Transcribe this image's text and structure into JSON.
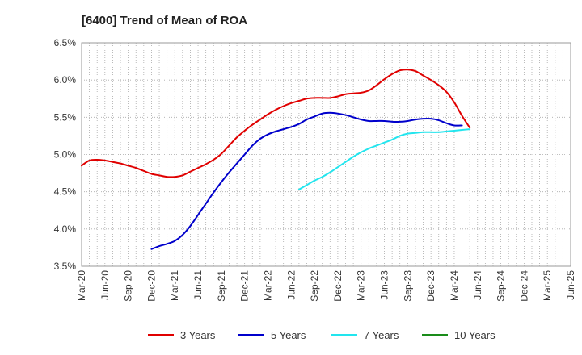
{
  "chart_data": {
    "type": "line",
    "title": "[6400]  Trend of Mean of ROA",
    "xlabel": "",
    "ylabel": "",
    "y_tick_labels": [
      "3.5%",
      "4.0%",
      "4.5%",
      "5.0%",
      "5.5%",
      "6.0%",
      "6.5%"
    ],
    "y_ticks": [
      3.5,
      4.0,
      4.5,
      5.0,
      5.5,
      6.0,
      6.5
    ],
    "ylim": [
      3.5,
      6.5
    ],
    "x_tick_labels": [
      "Mar-20",
      "Jun-20",
      "Sep-20",
      "Dec-20",
      "Mar-21",
      "Jun-21",
      "Sep-21",
      "Dec-21",
      "Mar-22",
      "Jun-22",
      "Sep-22",
      "Dec-22",
      "Mar-23",
      "Jun-23",
      "Sep-23",
      "Dec-23",
      "Mar-24",
      "Jun-24",
      "Sep-24",
      "Dec-24",
      "Mar-25",
      "Jun-25"
    ],
    "grid": true,
    "legend_position": "bottom",
    "series": [
      {
        "name": "3 Years",
        "color": "#e00000",
        "start_index": 0,
        "values": [
          4.85,
          4.92,
          4.93,
          4.92,
          4.9,
          4.88,
          4.85,
          4.82,
          4.78,
          4.74,
          4.72,
          4.7,
          4.7,
          4.72,
          4.77,
          4.82,
          4.87,
          4.93,
          5.01,
          5.12,
          5.23,
          5.32,
          5.4,
          5.47,
          5.54,
          5.6,
          5.65,
          5.69,
          5.72,
          5.75,
          5.76,
          5.76,
          5.76,
          5.78,
          5.81,
          5.82,
          5.83,
          5.86,
          5.93,
          6.01,
          6.08,
          6.13,
          6.14,
          6.12,
          6.06,
          6.0,
          5.93,
          5.84,
          5.7,
          5.52,
          5.36
        ]
      },
      {
        "name": "5 Years",
        "color": "#0000cc",
        "start_index": 9,
        "values": [
          3.73,
          3.77,
          3.8,
          3.84,
          3.92,
          4.04,
          4.19,
          4.34,
          4.49,
          4.63,
          4.76,
          4.88,
          5.0,
          5.12,
          5.21,
          5.27,
          5.31,
          5.34,
          5.37,
          5.41,
          5.47,
          5.51,
          5.55,
          5.56,
          5.55,
          5.53,
          5.5,
          5.47,
          5.45,
          5.45,
          5.45,
          5.44,
          5.44,
          5.45,
          5.47,
          5.48,
          5.48,
          5.46,
          5.42,
          5.39,
          5.39
        ]
      },
      {
        "name": "7 Years",
        "color": "#22e5ee",
        "start_index": 28,
        "values": [
          4.53,
          4.59,
          4.65,
          4.7,
          4.76,
          4.83,
          4.9,
          4.97,
          5.03,
          5.08,
          5.12,
          5.16,
          5.2,
          5.25,
          5.28,
          5.29,
          5.3,
          5.3,
          5.3,
          5.31,
          5.32,
          5.33,
          5.34
        ]
      },
      {
        "name": "10 Years",
        "color": "#1a8c1a",
        "start_index": 0,
        "values": []
      }
    ]
  }
}
